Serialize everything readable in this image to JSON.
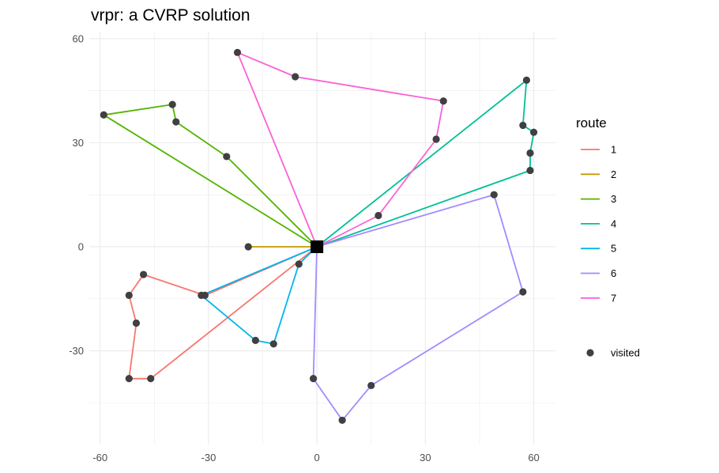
{
  "chart_data": {
    "type": "scatter",
    "title": "vrpr: a CVRP solution",
    "xlabel": "",
    "ylabel": "",
    "xlim": [
      -63,
      66
    ],
    "ylim": [
      -57,
      62
    ],
    "x_ticks": [
      -60,
      -30,
      0,
      30,
      60
    ],
    "y_ticks": [
      -30,
      0,
      30,
      60
    ],
    "x_tick_labels": [
      "-60",
      "-30",
      "0",
      "30",
      "60"
    ],
    "y_tick_labels": [
      "-30",
      "0",
      "30",
      "60"
    ],
    "grid": true,
    "legend_position": "right",
    "legend_title": "route",
    "depot": [
      0,
      0
    ],
    "routes": [
      {
        "name": "1",
        "color": "#F8766D",
        "points": [
          [
            0,
            0
          ],
          [
            -31,
            -14
          ],
          [
            -48,
            -8
          ],
          [
            -52,
            -14
          ],
          [
            -50,
            -22
          ],
          [
            -52,
            -38
          ],
          [
            -46,
            -38
          ],
          [
            0,
            0
          ]
        ]
      },
      {
        "name": "2",
        "color": "#C49A00",
        "points": [
          [
            0,
            0
          ],
          [
            -19,
            0
          ],
          [
            0,
            0
          ]
        ]
      },
      {
        "name": "3",
        "color": "#53B400",
        "points": [
          [
            0,
            0
          ],
          [
            -59,
            38
          ],
          [
            -40,
            41
          ],
          [
            -39,
            36
          ],
          [
            -25,
            26
          ],
          [
            0,
            0
          ]
        ]
      },
      {
        "name": "4",
        "color": "#00C094",
        "points": [
          [
            0,
            0
          ],
          [
            58,
            48
          ],
          [
            57,
            35
          ],
          [
            60,
            33
          ],
          [
            59,
            27
          ],
          [
            59,
            22
          ],
          [
            0,
            0
          ]
        ]
      },
      {
        "name": "5",
        "color": "#00B6EB",
        "points": [
          [
            0,
            0
          ],
          [
            -32,
            -14
          ],
          [
            -17,
            -27
          ],
          [
            -12,
            -28
          ],
          [
            -5,
            -5
          ],
          [
            0,
            0
          ]
        ]
      },
      {
        "name": "6",
        "color": "#A58AFF",
        "points": [
          [
            0,
            0
          ],
          [
            49,
            15
          ],
          [
            57,
            -13
          ],
          [
            15,
            -40
          ],
          [
            7,
            -50
          ],
          [
            -1,
            -38
          ],
          [
            0,
            0
          ]
        ]
      },
      {
        "name": "7",
        "color": "#FB61D7",
        "points": [
          [
            0,
            0
          ],
          [
            17,
            9
          ],
          [
            33,
            31
          ],
          [
            35,
            42
          ],
          [
            -6,
            49
          ],
          [
            -22,
            56
          ],
          [
            0,
            0
          ]
        ]
      }
    ],
    "visited": {
      "label": "visited",
      "color": "#404040",
      "points": [
        [
          -31,
          -14
        ],
        [
          -48,
          -8
        ],
        [
          -52,
          -14
        ],
        [
          -50,
          -22
        ],
        [
          -52,
          -38
        ],
        [
          -46,
          -38
        ],
        [
          -19,
          0
        ],
        [
          -59,
          38
        ],
        [
          -40,
          41
        ],
        [
          -39,
          36
        ],
        [
          -25,
          26
        ],
        [
          58,
          48
        ],
        [
          57,
          35
        ],
        [
          60,
          33
        ],
        [
          59,
          27
        ],
        [
          59,
          22
        ],
        [
          -32,
          -14
        ],
        [
          -17,
          -27
        ],
        [
          -12,
          -28
        ],
        [
          -5,
          -5
        ],
        [
          49,
          15
        ],
        [
          57,
          -13
        ],
        [
          15,
          -40
        ],
        [
          7,
          -50
        ],
        [
          -1,
          -38
        ],
        [
          17,
          9
        ],
        [
          33,
          31
        ],
        [
          35,
          42
        ],
        [
          -6,
          49
        ],
        [
          -22,
          56
        ]
      ]
    }
  }
}
